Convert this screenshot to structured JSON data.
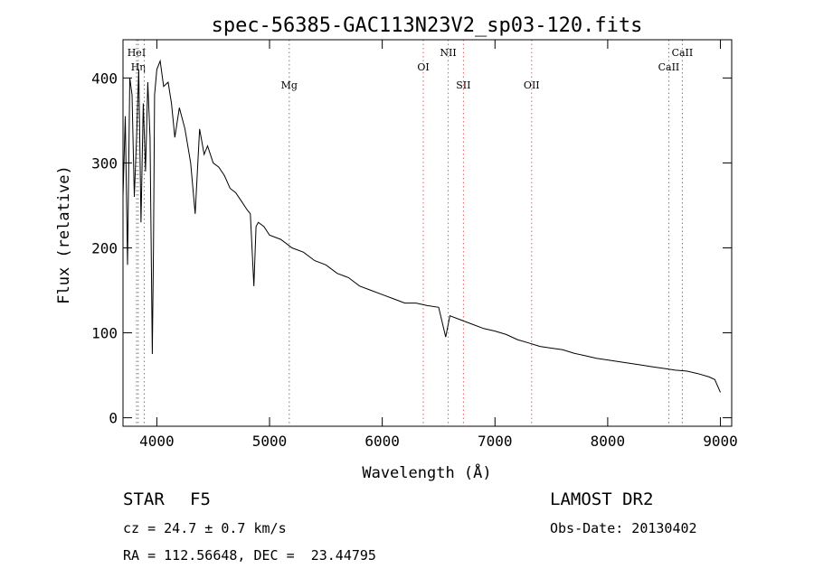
{
  "chart_data": {
    "type": "line",
    "title": "spec-56385-GAC113N23V2_sp03-120.fits",
    "xlabel": "Wavelength (Å)",
    "ylabel": "Flux (relative)",
    "xlim": [
      3700,
      9100
    ],
    "ylim": [
      -10,
      445
    ],
    "x_ticks": [
      4000,
      5000,
      6000,
      7000,
      8000,
      9000
    ],
    "y_ticks": [
      0,
      100,
      200,
      300,
      400
    ],
    "grid": false,
    "series": [
      {
        "x": [
          3700,
          3720,
          3740,
          3760,
          3780,
          3800,
          3820,
          3840,
          3860,
          3880,
          3900,
          3920,
          3940,
          3960,
          3970,
          3980,
          4000,
          4030,
          4060,
          4100,
          4130,
          4160,
          4200,
          4250,
          4300,
          4340,
          4380,
          4420,
          4450,
          4500,
          4550,
          4600,
          4650,
          4700,
          4750,
          4800,
          4830,
          4861,
          4880,
          4900,
          4950,
          5000,
          5100,
          5200,
          5300,
          5400,
          5500,
          5600,
          5700,
          5800,
          5900,
          6000,
          6100,
          6200,
          6300,
          6400,
          6500,
          6563,
          6600,
          6700,
          6800,
          6900,
          7000,
          7100,
          7200,
          7300,
          7400,
          7500,
          7600,
          7700,
          7800,
          7900,
          8000,
          8100,
          8200,
          8300,
          8400,
          8500,
          8600,
          8700,
          8800,
          8900,
          8950,
          9000
        ],
        "y": [
          260,
          355,
          180,
          400,
          380,
          260,
          330,
          410,
          230,
          370,
          290,
          395,
          330,
          75,
          200,
          380,
          410,
          420,
          390,
          395,
          370,
          330,
          365,
          340,
          300,
          240,
          340,
          310,
          320,
          300,
          295,
          285,
          270,
          265,
          255,
          245,
          240,
          155,
          225,
          230,
          225,
          215,
          210,
          200,
          195,
          185,
          180,
          170,
          165,
          155,
          150,
          145,
          140,
          135,
          135,
          132,
          130,
          95,
          120,
          115,
          110,
          105,
          102,
          98,
          92,
          88,
          84,
          82,
          80,
          76,
          73,
          70,
          68,
          66,
          64,
          62,
          60,
          58,
          56,
          55,
          52,
          48,
          45,
          30
        ]
      }
    ],
    "lines": [
      {
        "label": "HeI",
        "x": 3820,
        "color": "#7a7a7a",
        "level": 1
      },
      {
        "label": "Hη",
        "x": 3835,
        "color": "#7a7a7a",
        "level": 2
      },
      {
        "label": "",
        "x": 3889,
        "color": "#7a7a7a",
        "level": 0
      },
      {
        "label": "Mg",
        "x": 5175,
        "color": "#7a7a7a",
        "level": 3
      },
      {
        "label": "OI",
        "x": 6364,
        "color": "#e06060",
        "level": 2
      },
      {
        "label": "NII",
        "x": 6585,
        "color": "#e06060",
        "level": 1
      },
      {
        "label": "SII",
        "x": 6720,
        "color": "#e06060",
        "level": 3
      },
      {
        "label": "OII",
        "x": 7325,
        "color": "#e06060",
        "level": 3
      },
      {
        "label": "CaII",
        "x": 8542,
        "color": "#7a7a7a",
        "level": 2
      },
      {
        "label": "CaII",
        "x": 8662,
        "color": "#7a7a7a",
        "level": 1
      }
    ]
  },
  "info": {
    "object_type": "STAR",
    "subclass": "F5",
    "survey": "LAMOST DR2",
    "redshift": "cz = 24.7 ± 0.7 km/s",
    "obs_date": "Obs-Date: 20130402",
    "coords": "RA = 112.56648, DEC =  23.44795"
  }
}
